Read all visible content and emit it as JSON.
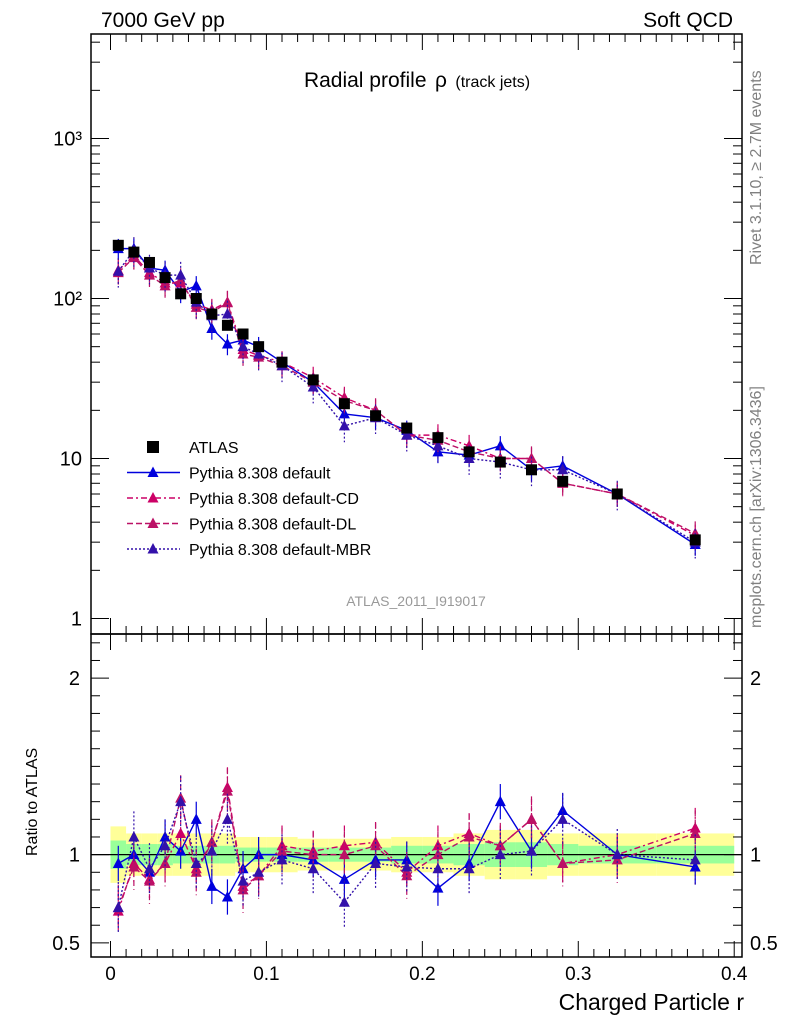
{
  "header": {
    "left": "7000 GeV pp",
    "right": "Soft QCD"
  },
  "side_labels": {
    "rivet": "Rivet 3.1.10, ≥ 2.7M events",
    "mcplots": "mcplots.cern.ch [arXiv:1306.3436]"
  },
  "chart_data": {
    "type": "line",
    "title_main": "Radial profile",
    "title_symbol": "ρ",
    "title_sub": "(track jets)",
    "analysis_id": "ATLAS_2011_I919017",
    "xlabel": "Charged Particle r",
    "ratio_ylabel": "Ratio to ATLAS",
    "xlim": [
      -0.0125,
      0.405
    ],
    "main_ylim": [
      0.8,
      4500
    ],
    "main_yscale": "log",
    "ratio_ylim": [
      0.42,
      2.25
    ],
    "x_ticks": [
      "0",
      "0.1",
      "0.2",
      "0.3",
      "0.4"
    ],
    "main_y_ticks": [
      "1",
      "10",
      "10²",
      "10³"
    ],
    "ratio_y_ticks": [
      "0.5",
      "1",
      "2"
    ],
    "legend_position": "bottom-left",
    "x": [
      0.005,
      0.015,
      0.025,
      0.035,
      0.045,
      0.055,
      0.065,
      0.075,
      0.085,
      0.095,
      0.11,
      0.13,
      0.15,
      0.17,
      0.19,
      0.21,
      0.23,
      0.25,
      0.27,
      0.29,
      0.325,
      0.375
    ],
    "series": [
      {
        "name": "ATLAS",
        "color": "#000000",
        "marker": "square",
        "values": [
          215,
          195,
          168,
          135,
          107,
          100,
          80,
          68,
          60,
          50,
          40,
          31,
          22,
          18.5,
          15.5,
          13.5,
          11,
          9.5,
          8.5,
          7.2,
          6,
          3.1
        ]
      },
      {
        "name": "Pythia 8.308 default",
        "color": "#0000dd",
        "marker": "triangle",
        "line": "solid",
        "values": [
          205,
          205,
          155,
          150,
          110,
          120,
          65,
          52,
          55,
          50,
          40,
          30,
          19,
          18,
          15,
          11,
          10.5,
          12,
          8.5,
          9,
          6,
          2.9
        ],
        "ratio": [
          0.95,
          1.0,
          0.9,
          1.1,
          1.02,
          1.2,
          0.82,
          0.76,
          0.92,
          1.0,
          1.0,
          0.97,
          0.86,
          0.97,
          0.97,
          0.81,
          0.95,
          1.3,
          1.02,
          1.25,
          1.0,
          0.93
        ]
      },
      {
        "name": "Pythia 8.308 default-CD",
        "color": "#cc0066",
        "marker": "triangle",
        "line": "dashdot",
        "values": [
          150,
          185,
          145,
          125,
          125,
          92,
          85,
          95,
          48,
          44,
          40,
          32,
          24,
          20,
          14,
          14,
          12,
          10,
          10,
          7,
          6,
          3.3
        ],
        "ratio": [
          0.68,
          0.95,
          0.86,
          0.95,
          1.12,
          0.92,
          1.07,
          1.38,
          0.82,
          0.88,
          1.05,
          1.02,
          1.05,
          1.07,
          0.9,
          1.05,
          1.12,
          1.05,
          1.2,
          0.95,
          1.0,
          1.15
        ]
      },
      {
        "name": "Pythia 8.308 default-DL",
        "color": "#bb1166",
        "marker": "triangle",
        "line": "dashed",
        "values": [
          145,
          180,
          140,
          120,
          130,
          88,
          82,
          94,
          45,
          43,
          38,
          30,
          23,
          20,
          14,
          13,
          11,
          10,
          10,
          7,
          6,
          3.4
        ],
        "ratio": [
          0.7,
          0.93,
          0.85,
          0.95,
          1.32,
          0.9,
          1.07,
          1.36,
          0.8,
          0.88,
          1.02,
          1.0,
          1.0,
          1.05,
          0.88,
          1.0,
          1.1,
          1.05,
          1.2,
          0.95,
          0.97,
          1.12
        ]
      },
      {
        "name": "Pythia 8.308 default-MBR",
        "color": "#3311aa",
        "marker": "triangle",
        "line": "dotted",
        "values": [
          148,
          200,
          155,
          140,
          140,
          95,
          78,
          80,
          50,
          45,
          38,
          28,
          16,
          18,
          14,
          12,
          10,
          9.5,
          8.5,
          8.5,
          6,
          3
        ],
        "ratio": [
          0.7,
          1.1,
          0.92,
          1.05,
          1.3,
          0.95,
          1.02,
          1.2,
          0.85,
          0.9,
          0.97,
          0.92,
          0.73,
          0.95,
          0.93,
          0.92,
          0.92,
          1.0,
          1.02,
          1.2,
          1.0,
          0.97
        ]
      }
    ]
  }
}
